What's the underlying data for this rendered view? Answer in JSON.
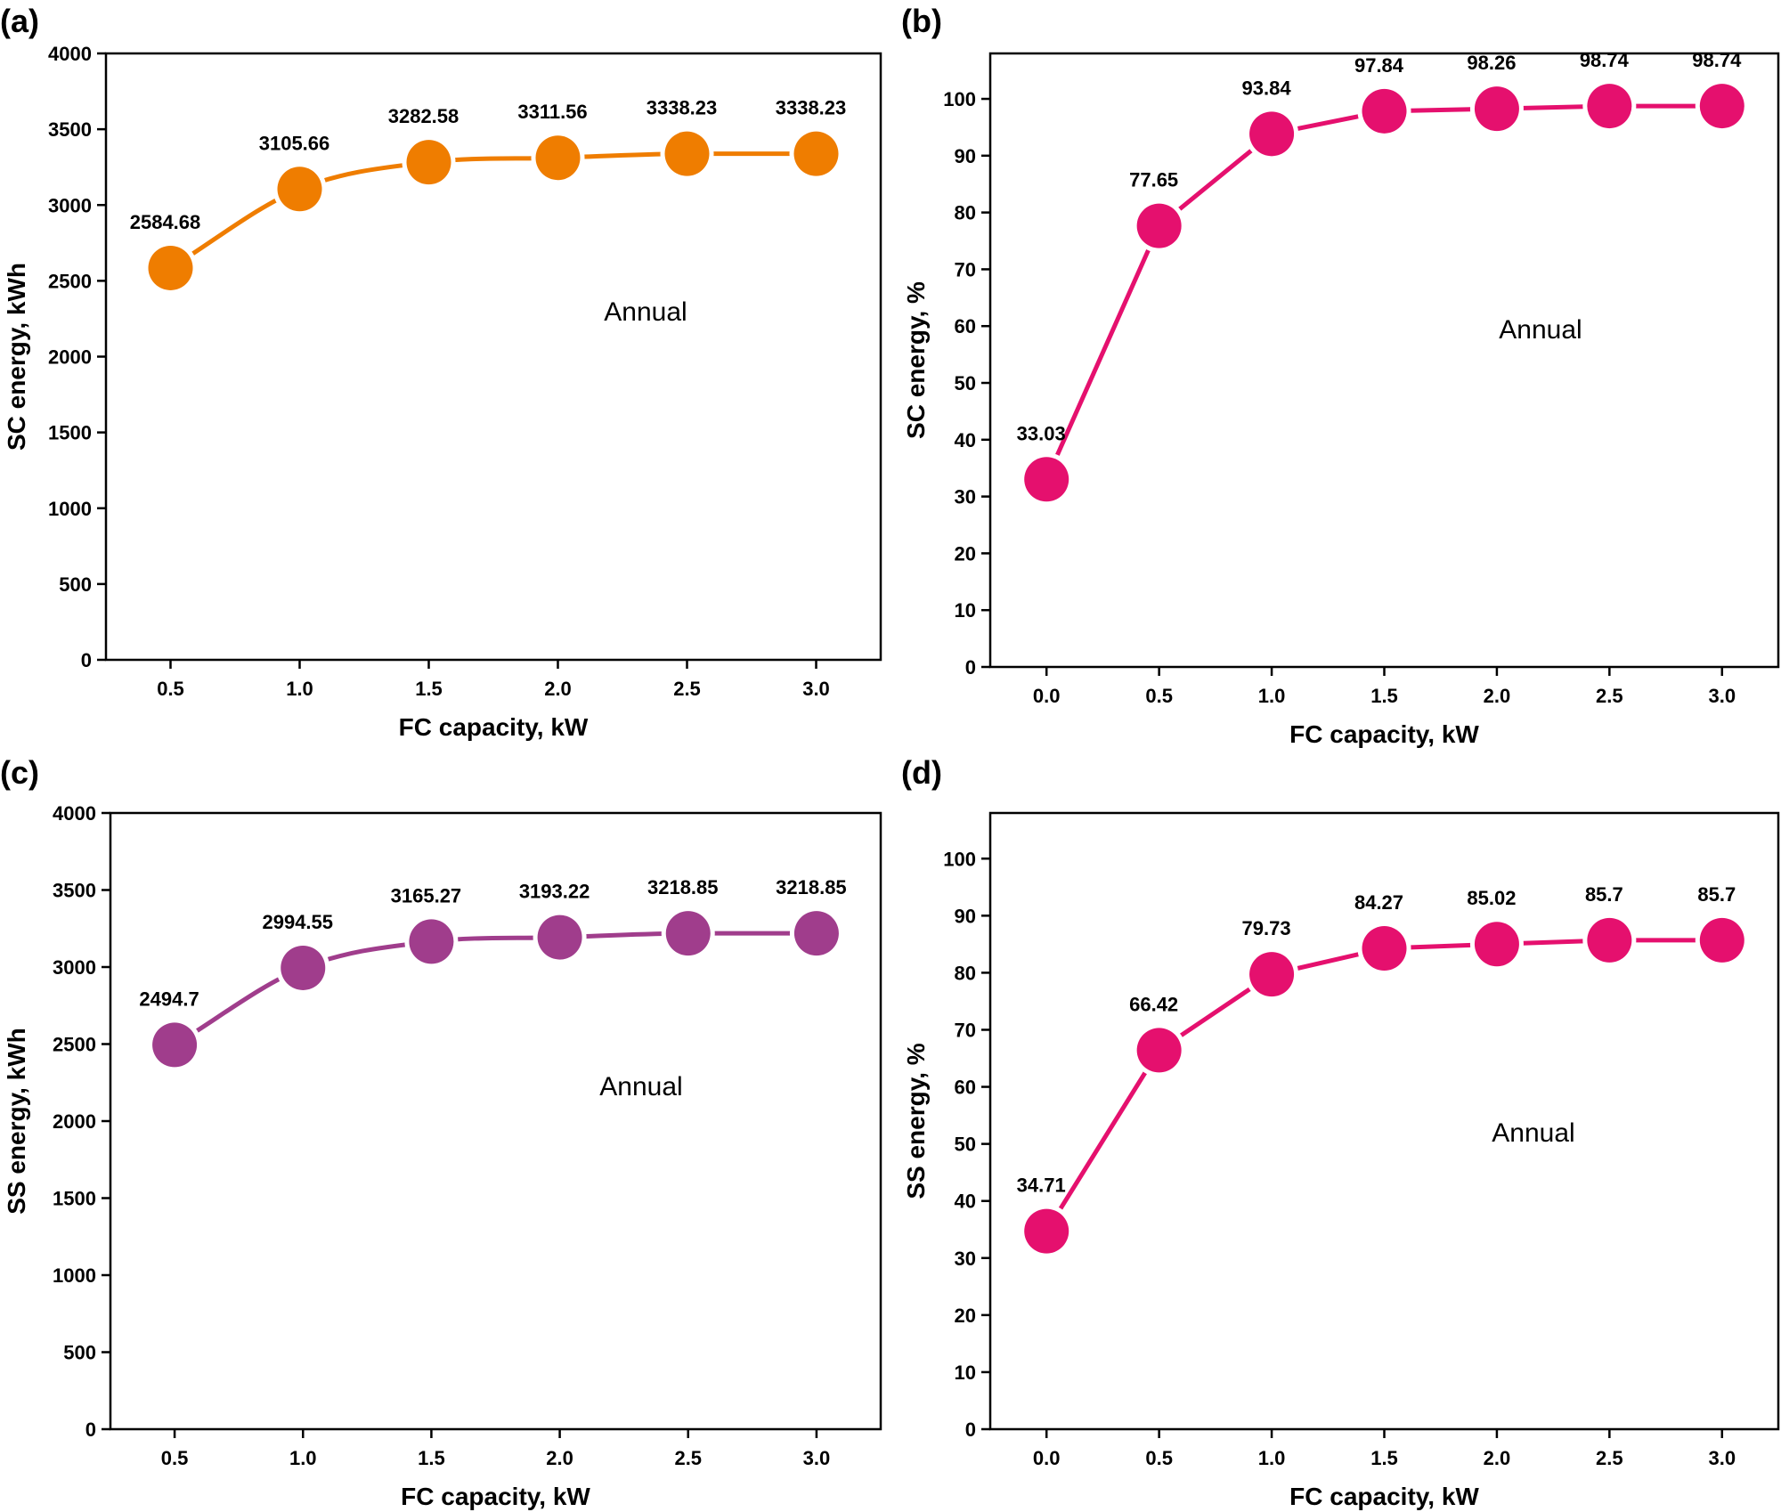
{
  "chart_data": [
    {
      "panel_label": "(a)",
      "type": "line",
      "xlabel": "FC capacity, kW",
      "ylabel": "SC energy, kWh",
      "x": [
        0.5,
        1.0,
        1.5,
        2.0,
        2.5,
        3.0
      ],
      "x_tick_labels": [
        "0.5",
        "1.0",
        "1.5",
        "2.0",
        "2.5",
        "3.0"
      ],
      "values": [
        2584.68,
        3105.66,
        3282.58,
        3311.56,
        3338.23,
        3338.23
      ],
      "data_labels": [
        "2584.68",
        "3105.66",
        "3282.58",
        "3311.56",
        "3338.23",
        "3338.23"
      ],
      "y_ticks": [
        0,
        500,
        1000,
        1500,
        2000,
        2500,
        3000,
        3500,
        4000
      ],
      "xlim": [
        0.25,
        3.25
      ],
      "ylim": [
        0,
        4000
      ],
      "annotation": "Annual",
      "smooth": true,
      "color": "#EF7D00",
      "grid": false
    },
    {
      "panel_label": "(b)",
      "type": "line",
      "xlabel": "FC capacity, kW",
      "ylabel": "SC energy, %",
      "x": [
        0.0,
        0.5,
        1.0,
        1.5,
        2.0,
        2.5,
        3.0
      ],
      "x_tick_labels": [
        "0.0",
        "0.5",
        "1.0",
        "1.5",
        "2.0",
        "2.5",
        "3.0"
      ],
      "values": [
        33.03,
        77.65,
        93.84,
        97.84,
        98.26,
        98.74,
        98.74
      ],
      "data_labels": [
        "33.03",
        "77.65",
        "93.84",
        "97.84",
        "98.26",
        "98.74",
        "98.74"
      ],
      "y_ticks": [
        0,
        10,
        20,
        30,
        40,
        50,
        60,
        70,
        80,
        90,
        100
      ],
      "xlim": [
        -0.25,
        3.25
      ],
      "ylim": [
        0,
        108
      ],
      "annotation": "Annual",
      "smooth": false,
      "color": "#E5106E",
      "grid": false
    },
    {
      "panel_label": "(c)",
      "type": "line",
      "xlabel": "FC capacity, kW",
      "ylabel": "SS energy, kWh",
      "x": [
        0.5,
        1.0,
        1.5,
        2.0,
        2.5,
        3.0
      ],
      "x_tick_labels": [
        "0.5",
        "1.0",
        "1.5",
        "2.0",
        "2.5",
        "3.0"
      ],
      "values": [
        2494.7,
        2994.55,
        3165.27,
        3193.22,
        3218.85,
        3218.85
      ],
      "data_labels": [
        "2494.7",
        "2994.55",
        "3165.27",
        "3193.22",
        "3218.85",
        "3218.85"
      ],
      "y_ticks": [
        0,
        500,
        1000,
        1500,
        2000,
        2500,
        3000,
        3500,
        4000
      ],
      "xlim": [
        0.25,
        3.25
      ],
      "ylim": [
        0,
        4000
      ],
      "annotation": "Annual",
      "smooth": true,
      "color": "#A03D8C",
      "grid": false
    },
    {
      "panel_label": "(d)",
      "type": "line",
      "xlabel": "FC capacity, kW",
      "ylabel": "SS energy, %",
      "x": [
        0.0,
        0.5,
        1.0,
        1.5,
        2.0,
        2.5,
        3.0
      ],
      "x_tick_labels": [
        "0.0",
        "0.5",
        "1.0",
        "1.5",
        "2.0",
        "2.5",
        "3.0"
      ],
      "values": [
        34.71,
        66.42,
        79.73,
        84.27,
        85.02,
        85.7,
        85.7
      ],
      "data_labels": [
        "34.71",
        "66.42",
        "79.73",
        "84.27",
        "85.02",
        "85.7",
        "85.7"
      ],
      "y_ticks": [
        0,
        10,
        20,
        30,
        40,
        50,
        60,
        70,
        80,
        90,
        100
      ],
      "xlim": [
        -0.25,
        3.25
      ],
      "ylim": [
        0,
        108
      ],
      "annotation": "Annual",
      "smooth": false,
      "color": "#E5106E",
      "grid": false
    }
  ]
}
